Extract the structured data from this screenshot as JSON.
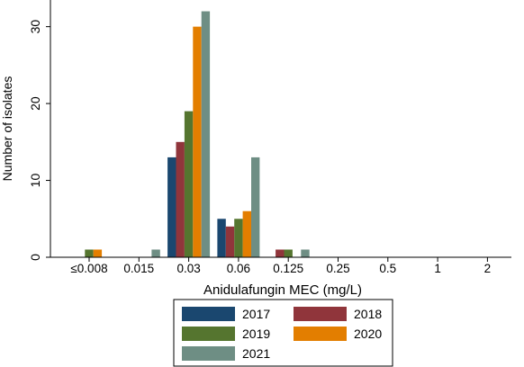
{
  "chart_data": {
    "type": "bar",
    "xlabel": "Anidulafungin MEC (mg/L)",
    "ylabel": "Number of isolates",
    "categories": [
      "≤0.008",
      "0.015",
      "0.03",
      "0.06",
      "0.125",
      "0.25",
      "0.5",
      "1",
      "2"
    ],
    "ylim": [
      0,
      33
    ],
    "yticks": [
      0,
      10,
      20,
      30
    ],
    "grid": false,
    "legend_position": "bottom",
    "series": [
      {
        "name": "2017",
        "color": "#1a476f",
        "values": [
          0,
          0,
          13,
          5,
          0,
          0,
          0,
          0,
          0
        ]
      },
      {
        "name": "2018",
        "color": "#90353b",
        "values": [
          0,
          0,
          15,
          4,
          1,
          0,
          0,
          0,
          0
        ]
      },
      {
        "name": "2019",
        "color": "#55752f",
        "values": [
          1,
          0,
          19,
          5,
          1,
          0,
          0,
          0,
          0
        ]
      },
      {
        "name": "2020",
        "color": "#e37e00",
        "values": [
          1,
          0,
          30,
          6,
          0,
          0,
          0,
          0,
          0
        ]
      },
      {
        "name": "2021",
        "color": "#6e8e84",
        "values": [
          0,
          1,
          32,
          13,
          1,
          0,
          0,
          0,
          0
        ]
      }
    ]
  }
}
